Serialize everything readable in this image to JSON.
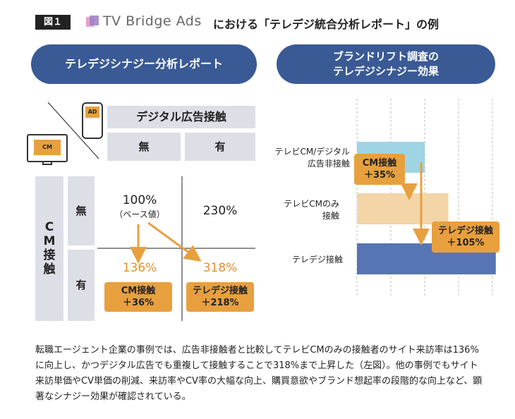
{
  "header": {
    "figure_label": "図１",
    "brand": "TV Bridge Ads",
    "title": "における「テレデジ統合分析レポート」の例"
  },
  "left_panel": {
    "pill_title": "テレデジシナジー分析レポート",
    "ad_icon_label": "AD",
    "cm_icon_label": "CM",
    "digital_header": "デジタル広告接触",
    "col_none": "無",
    "col_yes": "有",
    "cm_header": [
      "C",
      "M",
      "接",
      "触"
    ],
    "row_none": "無",
    "row_yes": "有",
    "base_value": "100%",
    "base_note": "（ベース値）",
    "digital_only_value": "230%",
    "cm_only_value": "136%",
    "both_value": "318%",
    "cm_box": [
      "CM接触",
      "＋36%"
    ],
    "tele_box": [
      "テレデジ接触",
      "＋218%"
    ]
  },
  "right_panel": {
    "pill_title": [
      "ブランドリフト調査の",
      "テレデジシナジー効果"
    ],
    "labels": {
      "none": [
        "テレビCM/デジタル",
        "広告非接触"
      ],
      "cm_only": [
        "テレビCMのみ",
        "接触"
      ],
      "both": [
        "テレデジ接触"
      ]
    },
    "box1": [
      "CM接触",
      "＋35%"
    ],
    "box2": [
      "テレデジ接触",
      "＋105%"
    ]
  },
  "chart_data": {
    "type": "bar",
    "categories": [
      "テレビCM/デジタル広告非接触",
      "テレビCMのみ接触",
      "テレデジ接触"
    ],
    "values": [
      100,
      135,
      205
    ],
    "colors": [
      "#9ed4e4",
      "#f3d5a8",
      "#5774b4"
    ],
    "annotations": [
      "CM接触 ＋35%",
      "テレデジ接触 ＋105%"
    ]
  },
  "caption": "転職エージェント企業の事例では、広告非接触者と比較してテレビCMのみの接触者のサイト来訪率は136%に向上し、かつデジタル広告でも重複して接触することで318%まで上昇した（左図）。他の事例でもサイト来訪単価やCV単価の削減、来訪率やCV率の大幅な向上、購買意欲やブランド想起率の段階的な向上など、顕著なシナジー効果が確認されている。",
  "colors": {
    "navy": "#3a5a95",
    "orange": "#e8a03e",
    "orange_text": "#e6902e",
    "grey_cell": "#dcdfe6"
  }
}
